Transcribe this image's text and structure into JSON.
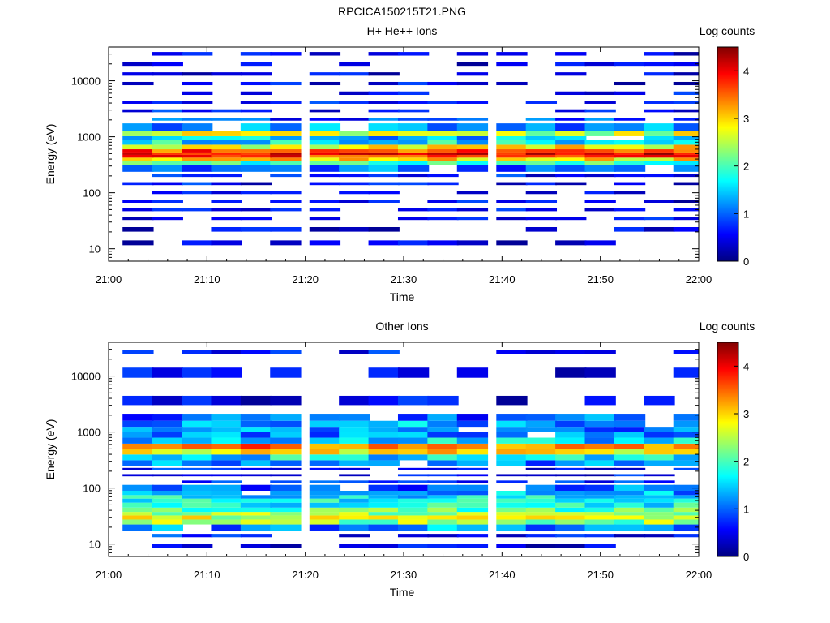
{
  "figure": {
    "filename": "RPCICA150215T21.PNG"
  },
  "colorbar": {
    "label": "Log counts",
    "ticks": [
      "0",
      "1",
      "2",
      "3",
      "4"
    ],
    "range": [
      0,
      4.5
    ],
    "colormap": [
      "#000080",
      "#0000ff",
      "#0080ff",
      "#00ffff",
      "#80ff80",
      "#ffff00",
      "#ff8000",
      "#ff0000",
      "#800000"
    ]
  },
  "chart_data": [
    {
      "type": "heatmap",
      "title": "H+ He++ Ions",
      "xlabel": "Time",
      "ylabel": "Energy (eV)",
      "x_ticks": [
        "21:00",
        "21:10",
        "21:20",
        "21:30",
        "21:40",
        "21:50",
        "22:00"
      ],
      "x_range": [
        "21:00",
        "22:00"
      ],
      "y_scale": "log",
      "y_ticks": [
        "10",
        "100",
        "1000",
        "10000"
      ],
      "y_range": [
        6,
        40000
      ],
      "time_columns": [
        "21:03",
        "21:06",
        "21:09",
        "21:12",
        "21:15",
        "21:18",
        "21:22",
        "21:25",
        "21:28",
        "21:31",
        "21:34",
        "21:37",
        "21:41",
        "21:44",
        "21:47",
        "21:50",
        "21:53",
        "21:56",
        "21:59"
      ],
      "energy_rows": [
        12,
        24,
        35,
        50,
        70,
        100,
        150,
        200,
        280,
        350,
        400,
        450,
        500,
        550,
        650,
        800,
        950,
        1100,
        1500,
        2000,
        3000,
        4000,
        6000,
        9000,
        13000,
        20000,
        30000
      ],
      "log_counts_profile": [
        0.3,
        0.3,
        0.4,
        0.4,
        0.4,
        0.4,
        0.5,
        0.5,
        1.0,
        2.0,
        3.0,
        3.8,
        4.1,
        3.6,
        2.8,
        1.6,
        1.4,
        2.6,
        1.2,
        0.9,
        0.6,
        0.5,
        0.4,
        0.4,
        0.3,
        0.3,
        0.3
      ]
    },
    {
      "type": "heatmap",
      "title": "Other Ions",
      "xlabel": "Time",
      "ylabel": "Energy (eV)",
      "x_ticks": [
        "21:00",
        "21:10",
        "21:20",
        "21:30",
        "21:40",
        "21:50",
        "22:00"
      ],
      "x_range": [
        "21:00",
        "22:00"
      ],
      "y_scale": "log",
      "y_ticks": [
        "10",
        "100",
        "1000",
        "10000"
      ],
      "y_range": [
        6,
        40000
      ],
      "time_columns": [
        "21:03",
        "21:06",
        "21:09",
        "21:12",
        "21:15",
        "21:18",
        "21:22",
        "21:25",
        "21:28",
        "21:31",
        "21:34",
        "21:37",
        "21:41",
        "21:44",
        "21:47",
        "21:50",
        "21:53",
        "21:56",
        "21:59"
      ],
      "energy_rows": [
        9,
        15,
        20,
        25,
        30,
        35,
        40,
        50,
        60,
        70,
        80,
        100,
        130,
        170,
        220,
        280,
        350,
        450,
        550,
        700,
        900,
        1100,
        1400,
        1800,
        2500,
        16000,
        27000
      ],
      "log_counts_profile": [
        0.4,
        0.6,
        1.2,
        2.3,
        2.6,
        2.3,
        2.1,
        1.8,
        1.6,
        1.6,
        1.3,
        1.0,
        0.6,
        0.5,
        0.7,
        1.2,
        1.6,
        2.9,
        3.4,
        1.5,
        1.2,
        1.1,
        1.3,
        1.0,
        0.4,
        0.4,
        0.5
      ]
    }
  ]
}
